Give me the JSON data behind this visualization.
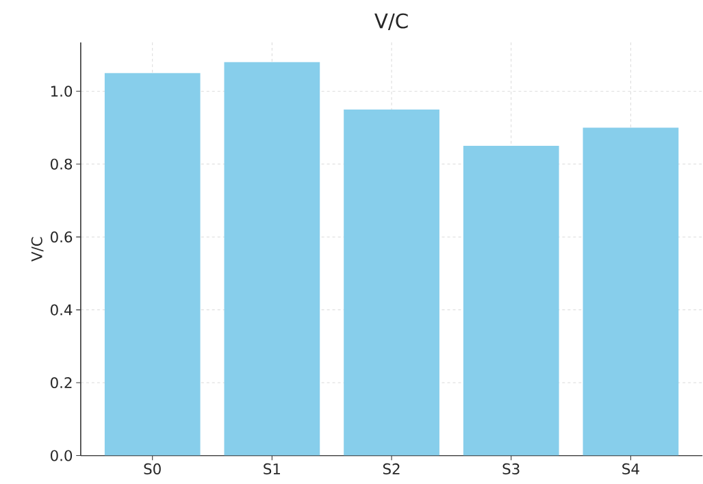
{
  "chart_data": {
    "type": "bar",
    "title": "V/C",
    "ylabel": "V/C",
    "categories": [
      "S0",
      "S1",
      "S2",
      "S3",
      "S4"
    ],
    "values": [
      1.05,
      1.08,
      0.95,
      0.85,
      0.9
    ],
    "color": "#87ceeb",
    "ylim": [
      0,
      1.134
    ],
    "yticks": [
      {
        "value": 0,
        "label": "0.0"
      },
      {
        "value": 0.2,
        "label": "0.2"
      },
      {
        "value": 0.4,
        "label": "0.4"
      },
      {
        "value": 0.6,
        "label": "0.6"
      },
      {
        "value": 0.8,
        "label": "0.8"
      },
      {
        "value": 1.0,
        "label": "1.0"
      }
    ],
    "grid": true
  }
}
